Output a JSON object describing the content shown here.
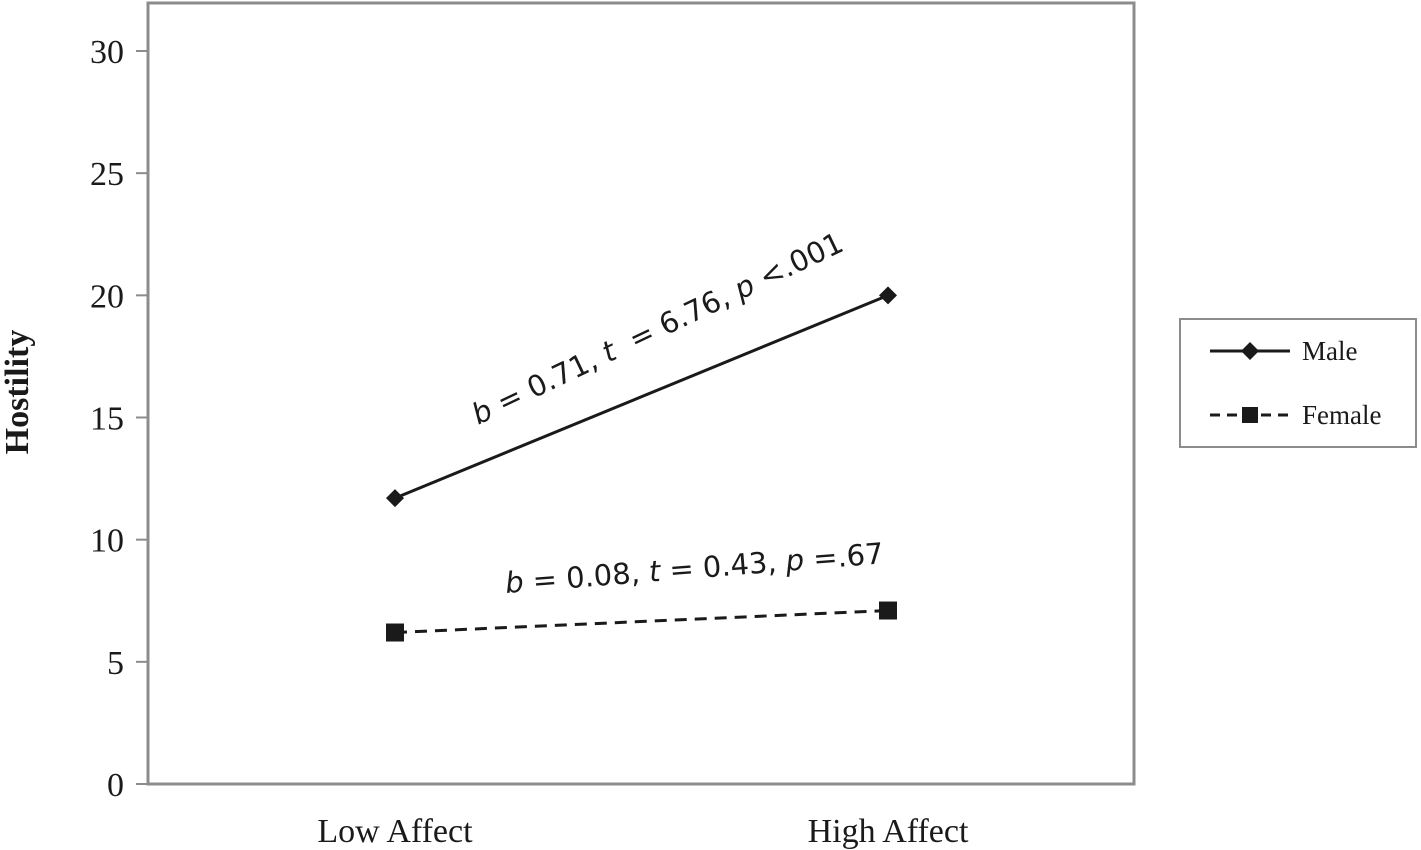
{
  "chart_data": {
    "type": "line",
    "categories": [
      "Low Affect",
      "High Affect"
    ],
    "series": [
      {
        "name": "Male",
        "values": [
          11.7,
          20.0
        ],
        "marker": "diamond",
        "line_style": "solid",
        "color": "#1a1a1a",
        "annotation": {
          "b_label": "b",
          "b_text": " = 0.71, ",
          "t_label": "t",
          "t_text": "  = 6.76, ",
          "p_label": "p",
          "p_text": " <.001"
        }
      },
      {
        "name": "Female",
        "values": [
          6.2,
          7.1
        ],
        "marker": "square",
        "line_style": "dashed",
        "color": "#1a1a1a",
        "annotation": {
          "b_label": "b",
          "b_text": " = 0.08, ",
          "t_label": "t",
          "t_text": " = 0.43, ",
          "p_label": "p",
          "p_text": " =.67"
        }
      }
    ],
    "title": "",
    "xlabel": "",
    "ylabel": "Hostility",
    "ylim": [
      0,
      30
    ],
    "yticks": [
      "0",
      "5",
      "10",
      "15",
      "20",
      "25",
      "30"
    ],
    "ytick_values": [
      0,
      5,
      10,
      15,
      20,
      25,
      30
    ],
    "grid": false,
    "legend_position": "right",
    "frame_color": "#8c8c8c"
  }
}
